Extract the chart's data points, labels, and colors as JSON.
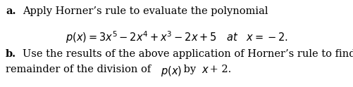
{
  "background_color": "#ffffff",
  "text_color": "#000000",
  "bold_color": "#000000",
  "fig_width": 5.02,
  "fig_height": 1.24,
  "dpi": 100,
  "font_size": 10.5,
  "line_a_bold": "a.",
  "line_a_normal": " Apply Horner’s rule to evaluate the polynomial",
  "formula": "$p(x) = 3x^5 - 2x^4 + x^3 - 2x + 5$   $\\mathit{at}$   $x = -2.$",
  "line_b_bold": "b.",
  "line_b_normal": " Use the results of the above application of Horner’s rule to find the quotient and",
  "line_b2_prefix": "remainder of the division of ",
  "line_b2_italic": "$p(x)$",
  "line_b2_mid": " by ",
  "line_b2_italic2": "$x$",
  "line_b2_end": " + 2."
}
